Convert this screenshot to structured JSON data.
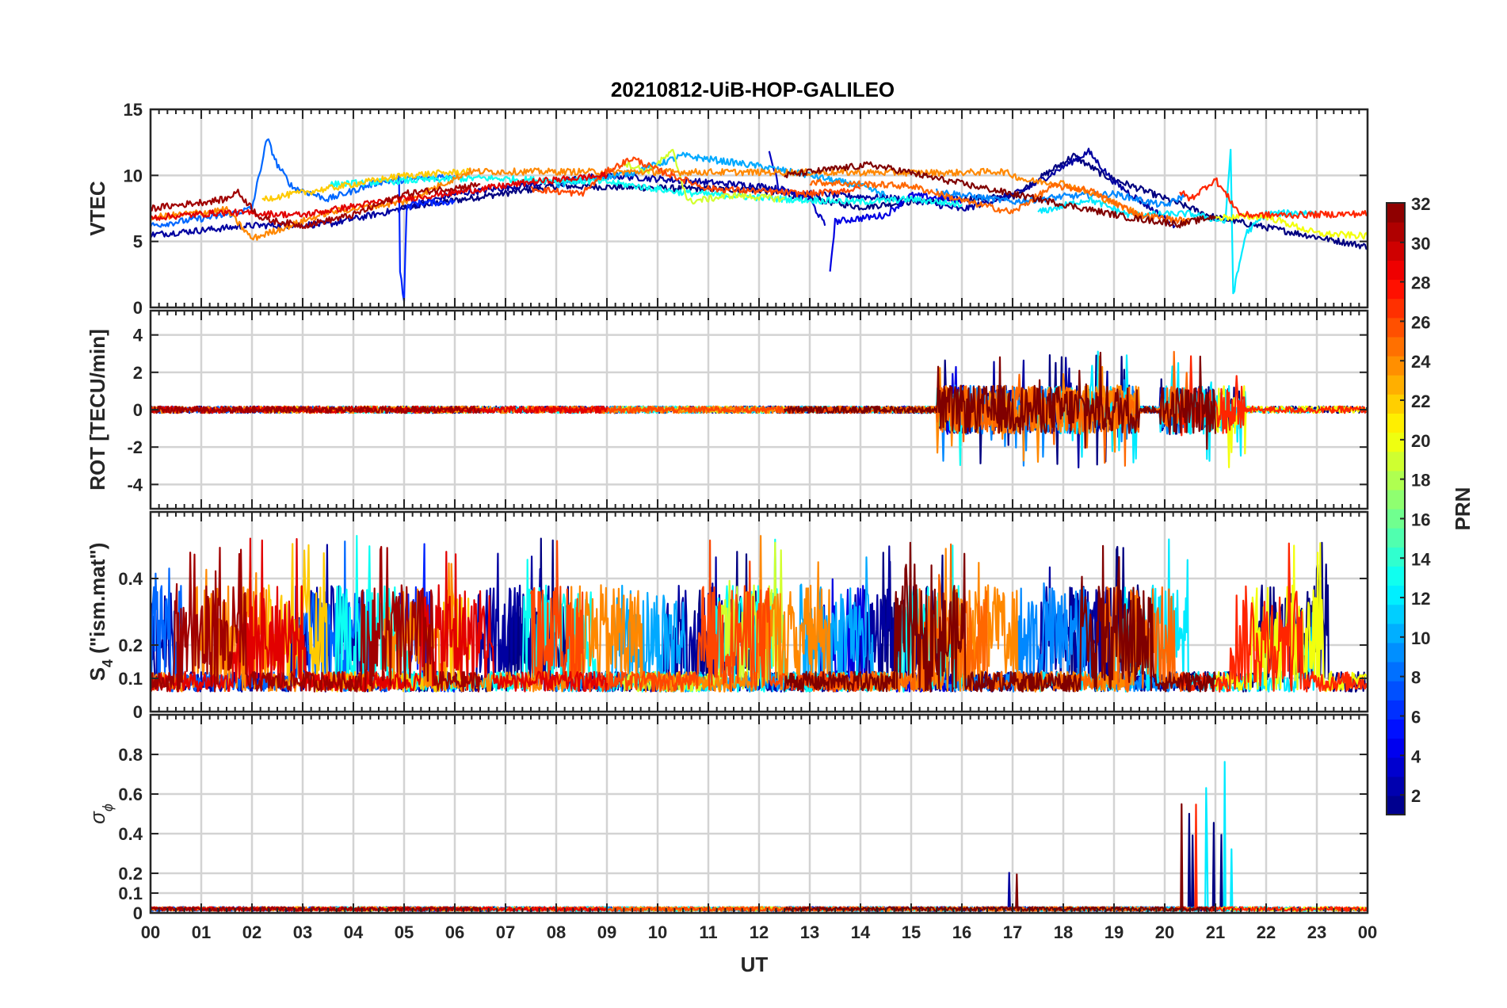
{
  "chart_data": {
    "type": "line",
    "title": "20210812-UiB-HOP-GALILEO",
    "xlabel": "UT",
    "xlim": [
      0,
      24
    ],
    "x_ticks": [
      "00",
      "01",
      "02",
      "03",
      "04",
      "05",
      "06",
      "07",
      "08",
      "09",
      "10",
      "11",
      "12",
      "13",
      "14",
      "15",
      "16",
      "17",
      "18",
      "19",
      "20",
      "21",
      "22",
      "23",
      "00"
    ],
    "colormap": "jet",
    "colorbar": {
      "label": "PRN",
      "range": [
        1,
        32
      ],
      "ticks": [
        "2",
        "4",
        "6",
        "8",
        "10",
        "12",
        "14",
        "16",
        "18",
        "20",
        "22",
        "24",
        "26",
        "28",
        "30",
        "32"
      ],
      "tick_values": [
        2,
        4,
        6,
        8,
        10,
        12,
        14,
        16,
        18,
        20,
        22,
        24,
        26,
        28,
        30,
        32
      ]
    },
    "panels": [
      {
        "id": "vtec",
        "ylabel": "VTEC",
        "ylim": [
          0,
          15
        ],
        "yticks": [
          0,
          5,
          10,
          15
        ],
        "ytick_labels": [
          "0",
          "5",
          "10",
          "15"
        ]
      },
      {
        "id": "rot",
        "ylabel": "ROT [TECU/min]",
        "ylim": [
          -5.3,
          5.3
        ],
        "yticks": [
          -4,
          -2,
          0,
          2,
          4
        ],
        "ytick_labels": [
          "-4",
          "-2",
          "0",
          "2",
          "4"
        ]
      },
      {
        "id": "s4",
        "ylabel_main": "S",
        "ylabel_sub": "4",
        "ylabel_rest": " (\"ism.mat\")",
        "ylim": [
          0,
          0.6
        ],
        "yticks": [
          0,
          0.1,
          0.2,
          0.4
        ],
        "ytick_labels": [
          "0",
          "0.1",
          "0.2",
          "0.4"
        ]
      },
      {
        "id": "sigma",
        "ylabel_main": "σ",
        "ylabel_sub": "ϕ",
        "ylim": [
          0,
          1
        ],
        "yticks": [
          0,
          0.1,
          0.2,
          0.4,
          0.6,
          0.8
        ],
        "ytick_labels": [
          "0",
          "0.1",
          "0.2",
          "0.4",
          "0.6",
          "0.8"
        ]
      }
    ],
    "series": [
      {
        "prn": 1,
        "name": "PRN 01",
        "vtec": [
          [
            4.9,
            7.5
          ],
          [
            8,
            9.2
          ],
          [
            12,
            8.9
          ],
          [
            14,
            7.6
          ],
          [
            15,
            8.0
          ],
          [
            17,
            8.4
          ],
          [
            18.2,
            11.5
          ],
          [
            18.8,
            10
          ],
          [
            21,
            6.8
          ],
          [
            24,
            4.6
          ]
        ]
      },
      {
        "prn": 2,
        "name": "PRN 02",
        "vtec": [
          [
            0,
            5.5
          ],
          [
            2,
            6.2
          ],
          [
            3.5,
            6.3
          ],
          [
            5,
            7.5
          ],
          [
            6,
            8.6
          ],
          [
            9,
            10.0
          ],
          [
            12,
            9.2
          ],
          [
            13,
            8.6
          ],
          [
            15,
            8.2
          ],
          [
            16,
            7.4
          ],
          [
            17.2,
            8.8
          ],
          [
            18.5,
            11.8
          ],
          [
            19,
            9.5
          ],
          [
            20.2,
            6.2
          ]
        ]
      },
      {
        "prn": 3,
        "name": "PRN 03",
        "vtec": [
          [
            12.2,
            12
          ],
          [
            12.4,
            8.9
          ],
          [
            13,
            8.2
          ],
          [
            13.3,
            6.2
          ]
        ]
      },
      {
        "prn": 4,
        "name": "PRN 04",
        "vtec": [
          [
            13.4,
            2.8
          ],
          [
            13.5,
            6.5
          ],
          [
            14.5,
            7.0
          ],
          [
            15,
            8.5
          ],
          [
            16,
            8.1
          ]
        ]
      },
      {
        "prn": 6,
        "name": "PRN 06",
        "vtec": [
          [
            4.9,
            10.2
          ],
          [
            4.92,
            2.8
          ],
          [
            5.0,
            0.5
          ],
          [
            5.05,
            7.5
          ],
          [
            5.2,
            7.9
          ],
          [
            6,
            8.0
          ]
        ]
      },
      {
        "prn": 8,
        "name": "PRN 08",
        "vtec": [
          [
            0,
            6.2
          ],
          [
            1.5,
            7.0
          ],
          [
            2,
            7.5
          ],
          [
            2.3,
            12.8
          ],
          [
            2.5,
            10.8
          ],
          [
            2.8,
            9.1
          ],
          [
            3.5,
            8.2
          ],
          [
            4.5,
            9.5
          ],
          [
            6,
            10.0
          ]
        ]
      },
      {
        "prn": 9,
        "name": "PRN 09",
        "vtec": [
          [
            15.5,
            8.8
          ],
          [
            17,
            8.0
          ],
          [
            18,
            8.4
          ],
          [
            19,
            8.6
          ],
          [
            20,
            7.7
          ],
          [
            20.4,
            8.5
          ]
        ]
      },
      {
        "prn": 10,
        "name": "PRN 10",
        "vtec": [
          [
            8,
            9.3
          ],
          [
            9.5,
            10.2
          ],
          [
            10.5,
            11.5
          ],
          [
            12,
            10.7
          ],
          [
            13,
            10.0
          ],
          [
            14,
            9.2
          ],
          [
            14.5,
            8.5
          ]
        ]
      },
      {
        "prn": 12,
        "name": "PRN 12",
        "vtec": [
          [
            17.5,
            7.2
          ],
          [
            18.5,
            8.2
          ],
          [
            19.3,
            7.0
          ],
          [
            20.5,
            7.1
          ],
          [
            21.2,
            6.5
          ],
          [
            21.3,
            12.0
          ],
          [
            21.35,
            1.0
          ],
          [
            21.6,
            5.6
          ],
          [
            22,
            7.1
          ],
          [
            23,
            7.2
          ]
        ]
      },
      {
        "prn": 13,
        "name": "PRN 13",
        "vtec": [
          [
            3.5,
            9.3
          ],
          [
            5,
            9.6
          ],
          [
            6.5,
            9.8
          ],
          [
            9,
            9.5
          ],
          [
            10.5,
            8.7
          ],
          [
            12.5,
            8.2
          ],
          [
            14,
            8.0
          ],
          [
            15,
            8.2
          ],
          [
            16,
            7.8
          ]
        ]
      },
      {
        "prn": 19,
        "name": "PRN 19",
        "vtec": [
          [
            9.3,
            11.0
          ],
          [
            9.8,
            10.3
          ],
          [
            10.3,
            11.8
          ],
          [
            10.6,
            8.0
          ],
          [
            11.5,
            8.5
          ],
          [
            12.5,
            8.2
          ]
        ]
      },
      {
        "prn": 20,
        "name": "PRN 20",
        "vtec": [
          [
            21,
            6.8
          ],
          [
            22,
            6.9
          ],
          [
            23,
            5.6
          ],
          [
            24,
            5.4
          ]
        ]
      },
      {
        "prn": 22,
        "name": "PRN 22",
        "vtec": [
          [
            2.2,
            8.2
          ],
          [
            3.5,
            9.0
          ],
          [
            5,
            10.0
          ],
          [
            6.3,
            10.3
          ]
        ]
      },
      {
        "prn": 24,
        "name": "PRN 24",
        "vtec": [
          [
            0,
            6.8
          ],
          [
            1.5,
            7.4
          ],
          [
            2,
            5.2
          ],
          [
            3.5,
            7.2
          ],
          [
            5,
            8.0
          ],
          [
            6.3,
            10.3
          ],
          [
            15.8,
            10.2
          ],
          [
            16.8,
            10.3
          ],
          [
            17.3,
            9.6
          ],
          [
            18,
            9.4
          ],
          [
            18.7,
            8.4
          ],
          [
            19.5,
            7.1
          ]
        ]
      },
      {
        "prn": 25,
        "name": "PRN 25",
        "vtec": [
          [
            13,
            9.5
          ],
          [
            15,
            9.2
          ],
          [
            16,
            8.1
          ],
          [
            17,
            7.2
          ],
          [
            17.8,
            9.2
          ],
          [
            18.5,
            8.9
          ],
          [
            19.5,
            7.0
          ],
          [
            20.5,
            6.5
          ]
        ]
      },
      {
        "prn": 26,
        "name": "PRN 26",
        "vtec": [
          [
            7.5,
            9.0
          ],
          [
            8.5,
            8.6
          ],
          [
            9,
            10.3
          ],
          [
            9.5,
            11.3
          ],
          [
            10,
            10.4
          ],
          [
            11,
            9.0
          ],
          [
            13,
            8.6
          ],
          [
            14,
            9.0
          ]
        ]
      },
      {
        "prn": 27,
        "name": "PRN 27",
        "vtec": [
          [
            20.3,
            8.8
          ],
          [
            20.5,
            8.2
          ],
          [
            21,
            9.7
          ],
          [
            21.5,
            7.0
          ],
          [
            22.5,
            7.0
          ],
          [
            24,
            7.1
          ]
        ]
      },
      {
        "prn": 29,
        "name": "PRN 29",
        "vtec": [
          [
            0,
            6.8
          ],
          [
            1.5,
            7.2
          ],
          [
            3,
            7.0
          ],
          [
            4.5,
            8.0
          ],
          [
            6,
            8.7
          ],
          [
            7.5,
            9.5
          ],
          [
            9,
            10.0
          ]
        ]
      },
      {
        "prn": 31,
        "name": "PRN 31",
        "vtec": [
          [
            0,
            7.5
          ],
          [
            1.5,
            8.2
          ],
          [
            1.7,
            8.8
          ],
          [
            2.2,
            6.7
          ],
          [
            3,
            6.2
          ],
          [
            4,
            7.0
          ],
          [
            5,
            8.6
          ],
          [
            6.5,
            9.3
          ]
        ]
      },
      {
        "prn": 32,
        "name": "PRN 32",
        "vtec": [
          [
            12.5,
            10.0
          ],
          [
            13.5,
            10.5
          ],
          [
            14.2,
            10.8
          ],
          [
            15,
            10.2
          ],
          [
            15.2,
            10.0
          ],
          [
            19.3,
            6.8
          ],
          [
            20.3,
            6.3
          ],
          [
            21,
            6.9
          ]
        ]
      }
    ]
  }
}
